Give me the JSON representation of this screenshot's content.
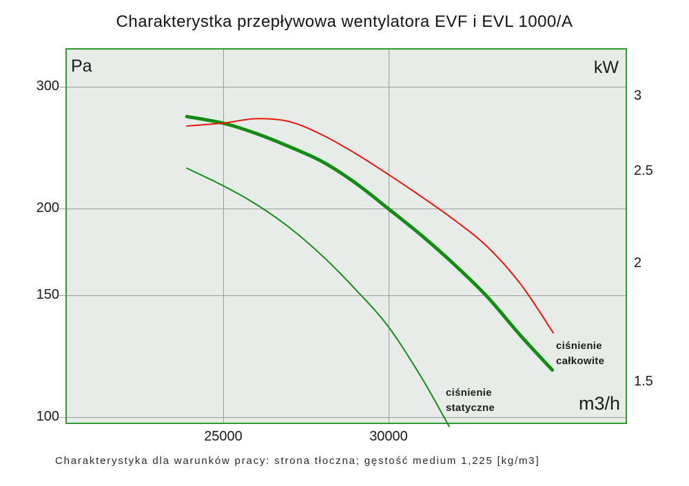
{
  "title": "Charakterystka przepływowa wentylatora EVF i EVL 1000/A",
  "caption": "Charakterystyka dla warunków pracy: strona tłoczna; gęstość medium 1,225 [kg/m3]",
  "colors": {
    "plot_bg": "#e8ece8",
    "plot_border": "#2e9b2e",
    "gridline": "#9a9a9a",
    "text": "#1b1b1b",
    "total_pressure_curve": "#128c12",
    "static_pressure_curve": "#128c12",
    "power_curve": "#ea1408"
  },
  "chart_data": {
    "type": "line",
    "title": "Charakterystka przepływowa wentylatora EVF i EVL 1000/A",
    "x_axis": {
      "unit": "m3/h",
      "scale": "linear",
      "ticks": [
        "25000",
        "30000"
      ],
      "tick_values": [
        25000,
        30000
      ],
      "xlim": [
        20200,
        37200
      ]
    },
    "y_left_axis": {
      "unit": "Pa",
      "scale": "log",
      "ticks": [
        "300",
        "200",
        "150",
        "100"
      ],
      "tick_values": [
        300,
        200,
        150,
        100
      ],
      "ylim": [
        98,
        341
      ],
      "gridlines": true
    },
    "y_right_axis": {
      "unit": "kW",
      "scale": "log",
      "ticks": [
        "3",
        "2.5",
        "2",
        "1.5"
      ],
      "tick_values": [
        3,
        2.5,
        2,
        1.5
      ],
      "ylim": [
        1.36,
        3.37
      ],
      "gridlines": false
    },
    "series": [
      {
        "id": "total-pressure",
        "label": "ciśnienie całkowite",
        "axis": "pa",
        "color": "#128c12",
        "width": 5,
        "x": [
          23900,
          25000,
          26000,
          27000,
          28000,
          29000,
          30000,
          31000,
          32000,
          33000,
          34000,
          34950
        ],
        "values": [
          272,
          266,
          257,
          246,
          234,
          218,
          200,
          183,
          166,
          149,
          131,
          117
        ]
      },
      {
        "id": "static-pressure",
        "label": "ciśnienie statyczne",
        "axis": "pa",
        "color": "#128c12",
        "width": 2,
        "x": [
          23900,
          25000,
          26000,
          27000,
          28000,
          29000,
          30000,
          31000,
          31830
        ],
        "values": [
          229,
          216,
          203,
          188,
          171,
          153,
          135,
          114,
          97
        ]
      },
      {
        "id": "power",
        "label": "",
        "axis": "kw",
        "color": "#ea1408",
        "width": 2,
        "x": [
          23900,
          25000,
          26000,
          27000,
          28000,
          29000,
          30000,
          31000,
          32000,
          33000,
          34000,
          34980
        ],
        "values": [
          2.79,
          2.81,
          2.84,
          2.82,
          2.73,
          2.61,
          2.48,
          2.35,
          2.22,
          2.08,
          1.9,
          1.69
        ]
      }
    ],
    "annotations": [
      {
        "id": "total-pressure-label",
        "lines": [
          "ciśnienie",
          "całkowite"
        ]
      },
      {
        "id": "static-pressure-label",
        "lines": [
          "ciśnienie",
          "statyczne"
        ]
      }
    ],
    "legend": "none"
  }
}
